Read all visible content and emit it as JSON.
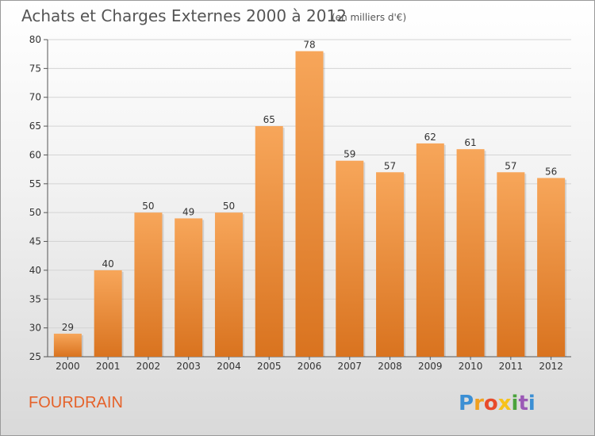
{
  "chart_data": {
    "type": "bar",
    "title": "Achats et Charges Externes 2000 à 2012",
    "subtitle": "(en milliers d'€)",
    "categories": [
      "2000",
      "2001",
      "2002",
      "2003",
      "2004",
      "2005",
      "2006",
      "2007",
      "2008",
      "2009",
      "2010",
      "2011",
      "2012"
    ],
    "values": [
      29,
      40,
      50,
      49,
      50,
      65,
      78,
      59,
      57,
      62,
      61,
      57,
      56
    ],
    "ylim": [
      25,
      80
    ],
    "yticks": [
      25,
      30,
      35,
      40,
      45,
      50,
      55,
      60,
      65,
      70,
      75,
      80
    ],
    "grid": true,
    "bar_color_top": "#f7a65a",
    "bar_color_bottom": "#d9731f"
  },
  "footer": {
    "town": "FOURDRAIN",
    "logo_letters": [
      "P",
      "r",
      "o",
      "x",
      "i",
      "t",
      "i"
    ],
    "logo_colors": [
      "#3b8fd4",
      "#f0a020",
      "#e84a2a",
      "#f7c21b",
      "#4aa33c",
      "#9b59b6",
      "#3b8fd4"
    ]
  }
}
